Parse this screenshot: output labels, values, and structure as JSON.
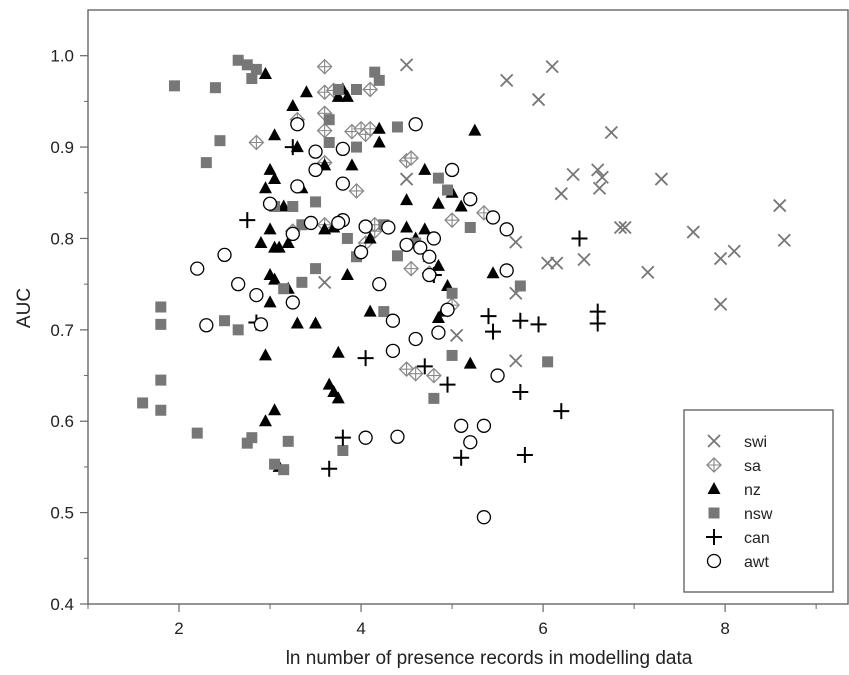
{
  "chart_data": {
    "type": "scatter",
    "title": "",
    "xlabel": "ln number of presence records in modelling data",
    "ylabel": "AUC",
    "xlim": [
      1,
      9.35
    ],
    "ylim": [
      0.4,
      1.05
    ],
    "xticks": [
      2,
      4,
      6,
      8
    ],
    "yticks": [
      0.4,
      0.5,
      0.6,
      0.7,
      0.8,
      0.9,
      1.0
    ],
    "ytick_labels": [
      "0.4",
      "0.5",
      "0.6",
      "0.7",
      "0.8",
      "0.9",
      "1.0"
    ],
    "grid": false,
    "legend_position": "bottom-right",
    "series": [
      {
        "name": "swi",
        "marker": "x",
        "color": "#777777",
        "points": [
          [
            4.5,
            0.99
          ],
          [
            5.6,
            0.973
          ],
          [
            6.1,
            0.988
          ],
          [
            5.95,
            0.952
          ],
          [
            6.75,
            0.916
          ],
          [
            4.5,
            0.865
          ],
          [
            6.2,
            0.849
          ],
          [
            6.33,
            0.87
          ],
          [
            6.6,
            0.875
          ],
          [
            6.65,
            0.867
          ],
          [
            6.62,
            0.855
          ],
          [
            7.3,
            0.865
          ],
          [
            8.6,
            0.836
          ],
          [
            6.85,
            0.812
          ],
          [
            6.9,
            0.812
          ],
          [
            7.65,
            0.807
          ],
          [
            8.65,
            0.798
          ],
          [
            5.7,
            0.796
          ],
          [
            6.05,
            0.773
          ],
          [
            6.15,
            0.773
          ],
          [
            6.45,
            0.777
          ],
          [
            7.15,
            0.763
          ],
          [
            7.95,
            0.778
          ],
          [
            8.1,
            0.786
          ],
          [
            3.6,
            0.752
          ],
          [
            5.7,
            0.74
          ],
          [
            7.95,
            0.728
          ],
          [
            5.05,
            0.694
          ],
          [
            5.7,
            0.666
          ]
        ]
      },
      {
        "name": "sa",
        "marker": "diamond-plus",
        "color": "#888888",
        "points": [
          [
            3.6,
            0.988
          ],
          [
            3.6,
            0.96
          ],
          [
            3.7,
            0.962
          ],
          [
            4.1,
            0.963
          ],
          [
            3.6,
            0.937
          ],
          [
            3.3,
            0.93
          ],
          [
            3.6,
            0.918
          ],
          [
            3.9,
            0.917
          ],
          [
            4.0,
            0.92
          ],
          [
            4.05,
            0.914
          ],
          [
            4.1,
            0.92
          ],
          [
            4.5,
            0.885
          ],
          [
            4.55,
            0.888
          ],
          [
            2.85,
            0.905
          ],
          [
            3.6,
            0.883
          ],
          [
            3.95,
            0.852
          ],
          [
            5.0,
            0.82
          ],
          [
            5.35,
            0.828
          ],
          [
            4.15,
            0.808
          ],
          [
            3.25,
            0.808
          ],
          [
            3.6,
            0.815
          ],
          [
            4.05,
            0.795
          ],
          [
            4.15,
            0.815
          ],
          [
            4.55,
            0.767
          ],
          [
            4.75,
            0.762
          ],
          [
            4.95,
            0.722
          ],
          [
            5.0,
            0.727
          ],
          [
            4.5,
            0.657
          ],
          [
            4.6,
            0.652
          ],
          [
            4.8,
            0.65
          ]
        ]
      },
      {
        "name": "nz",
        "marker": "triangle",
        "color": "#000000",
        "points": [
          [
            2.95,
            0.98
          ],
          [
            3.4,
            0.96
          ],
          [
            3.75,
            0.955
          ],
          [
            3.8,
            0.963
          ],
          [
            3.25,
            0.945
          ],
          [
            3.85,
            0.955
          ],
          [
            3.05,
            0.913
          ],
          [
            3.3,
            0.9
          ],
          [
            4.2,
            0.905
          ],
          [
            4.2,
            0.92
          ],
          [
            5.25,
            0.918
          ],
          [
            3.6,
            0.88
          ],
          [
            3.0,
            0.875
          ],
          [
            3.35,
            0.855
          ],
          [
            2.95,
            0.855
          ],
          [
            3.05,
            0.865
          ],
          [
            3.9,
            0.88
          ],
          [
            4.7,
            0.875
          ],
          [
            5.0,
            0.85
          ],
          [
            3.15,
            0.835
          ],
          [
            4.5,
            0.842
          ],
          [
            4.85,
            0.838
          ],
          [
            3.0,
            0.81
          ],
          [
            3.7,
            0.812
          ],
          [
            4.5,
            0.812
          ],
          [
            4.7,
            0.81
          ],
          [
            5.1,
            0.835
          ],
          [
            2.9,
            0.795
          ],
          [
            3.05,
            0.79
          ],
          [
            3.1,
            0.79
          ],
          [
            3.2,
            0.795
          ],
          [
            3.6,
            0.81
          ],
          [
            4.1,
            0.8
          ],
          [
            4.6,
            0.8
          ],
          [
            4.75,
            0.78
          ],
          [
            4.85,
            0.77
          ],
          [
            3.0,
            0.76
          ],
          [
            3.05,
            0.755
          ],
          [
            3.2,
            0.745
          ],
          [
            3.85,
            0.76
          ],
          [
            4.95,
            0.748
          ],
          [
            5.45,
            0.762
          ],
          [
            3.0,
            0.73
          ],
          [
            3.3,
            0.707
          ],
          [
            3.5,
            0.707
          ],
          [
            4.1,
            0.72
          ],
          [
            4.85,
            0.713
          ],
          [
            4.9,
            0.72
          ],
          [
            2.95,
            0.672
          ],
          [
            3.75,
            0.675
          ],
          [
            5.2,
            0.663
          ],
          [
            3.65,
            0.64
          ],
          [
            3.7,
            0.632
          ],
          [
            3.75,
            0.625
          ],
          [
            3.05,
            0.612
          ],
          [
            2.95,
            0.6
          ],
          [
            3.1,
            0.55
          ]
        ]
      },
      {
        "name": "nsw",
        "marker": "square",
        "color": "#777777",
        "points": [
          [
            2.65,
            0.995
          ],
          [
            2.75,
            0.99
          ],
          [
            2.85,
            0.985
          ],
          [
            2.8,
            0.975
          ],
          [
            4.15,
            0.982
          ],
          [
            4.2,
            0.973
          ],
          [
            1.95,
            0.967
          ],
          [
            2.4,
            0.965
          ],
          [
            3.75,
            0.963
          ],
          [
            3.95,
            0.963
          ],
          [
            3.65,
            0.93
          ],
          [
            4.4,
            0.922
          ],
          [
            2.45,
            0.907
          ],
          [
            3.65,
            0.905
          ],
          [
            3.95,
            0.9
          ],
          [
            2.3,
            0.883
          ],
          [
            4.95,
            0.853
          ],
          [
            4.85,
            0.866
          ],
          [
            3.05,
            0.835
          ],
          [
            3.25,
            0.835
          ],
          [
            3.5,
            0.84
          ],
          [
            4.25,
            0.815
          ],
          [
            3.35,
            0.815
          ],
          [
            3.85,
            0.8
          ],
          [
            3.95,
            0.78
          ],
          [
            4.6,
            0.795
          ],
          [
            5.2,
            0.812
          ],
          [
            4.4,
            0.781
          ],
          [
            3.5,
            0.767
          ],
          [
            3.15,
            0.745
          ],
          [
            3.35,
            0.752
          ],
          [
            5.75,
            0.748
          ],
          [
            1.8,
            0.725
          ],
          [
            2.5,
            0.71
          ],
          [
            1.8,
            0.706
          ],
          [
            2.65,
            0.7
          ],
          [
            4.25,
            0.72
          ],
          [
            5.0,
            0.672
          ],
          [
            5.0,
            0.74
          ],
          [
            6.05,
            0.665
          ],
          [
            1.8,
            0.645
          ],
          [
            4.8,
            0.625
          ],
          [
            1.6,
            0.62
          ],
          [
            1.8,
            0.612
          ],
          [
            2.2,
            0.587
          ],
          [
            2.8,
            0.582
          ],
          [
            2.75,
            0.576
          ],
          [
            3.2,
            0.578
          ],
          [
            3.8,
            0.568
          ],
          [
            3.05,
            0.553
          ],
          [
            3.15,
            0.547
          ]
        ]
      },
      {
        "name": "can",
        "marker": "plus",
        "color": "#000000",
        "points": [
          [
            2.75,
            0.82
          ],
          [
            3.25,
            0.9
          ],
          [
            6.4,
            0.8
          ],
          [
            4.8,
            0.76
          ],
          [
            2.85,
            0.708
          ],
          [
            5.4,
            0.715
          ],
          [
            5.45,
            0.698
          ],
          [
            5.75,
            0.71
          ],
          [
            5.95,
            0.706
          ],
          [
            6.6,
            0.72
          ],
          [
            6.6,
            0.707
          ],
          [
            4.05,
            0.669
          ],
          [
            4.7,
            0.66
          ],
          [
            4.95,
            0.64
          ],
          [
            5.75,
            0.632
          ],
          [
            6.2,
            0.611
          ],
          [
            3.8,
            0.582
          ],
          [
            5.8,
            0.563
          ],
          [
            5.1,
            0.56
          ],
          [
            3.65,
            0.548
          ]
        ]
      },
      {
        "name": "awt",
        "marker": "circle",
        "color": "#000000",
        "points": [
          [
            3.3,
            0.925
          ],
          [
            4.6,
            0.925
          ],
          [
            3.5,
            0.895
          ],
          [
            3.8,
            0.898
          ],
          [
            3.5,
            0.875
          ],
          [
            5.0,
            0.875
          ],
          [
            3.3,
            0.857
          ],
          [
            3.8,
            0.86
          ],
          [
            5.2,
            0.843
          ],
          [
            3.0,
            0.838
          ],
          [
            5.45,
            0.823
          ],
          [
            3.45,
            0.817
          ],
          [
            3.8,
            0.82
          ],
          [
            3.75,
            0.817
          ],
          [
            4.05,
            0.813
          ],
          [
            4.3,
            0.812
          ],
          [
            5.6,
            0.81
          ],
          [
            3.25,
            0.805
          ],
          [
            4.8,
            0.8
          ],
          [
            4.5,
            0.793
          ],
          [
            4.65,
            0.79
          ],
          [
            4.75,
            0.78
          ],
          [
            4.0,
            0.785
          ],
          [
            2.5,
            0.782
          ],
          [
            2.2,
            0.767
          ],
          [
            5.6,
            0.765
          ],
          [
            4.75,
            0.76
          ],
          [
            2.65,
            0.75
          ],
          [
            4.2,
            0.75
          ],
          [
            2.85,
            0.738
          ],
          [
            3.25,
            0.73
          ],
          [
            4.35,
            0.71
          ],
          [
            2.3,
            0.705
          ],
          [
            2.9,
            0.706
          ],
          [
            4.95,
            0.722
          ],
          [
            4.85,
            0.697
          ],
          [
            4.6,
            0.69
          ],
          [
            4.35,
            0.677
          ],
          [
            5.5,
            0.65
          ],
          [
            5.1,
            0.595
          ],
          [
            5.35,
            0.595
          ],
          [
            4.05,
            0.582
          ],
          [
            4.4,
            0.583
          ],
          [
            5.2,
            0.577
          ],
          [
            5.35,
            0.495
          ]
        ]
      }
    ]
  }
}
